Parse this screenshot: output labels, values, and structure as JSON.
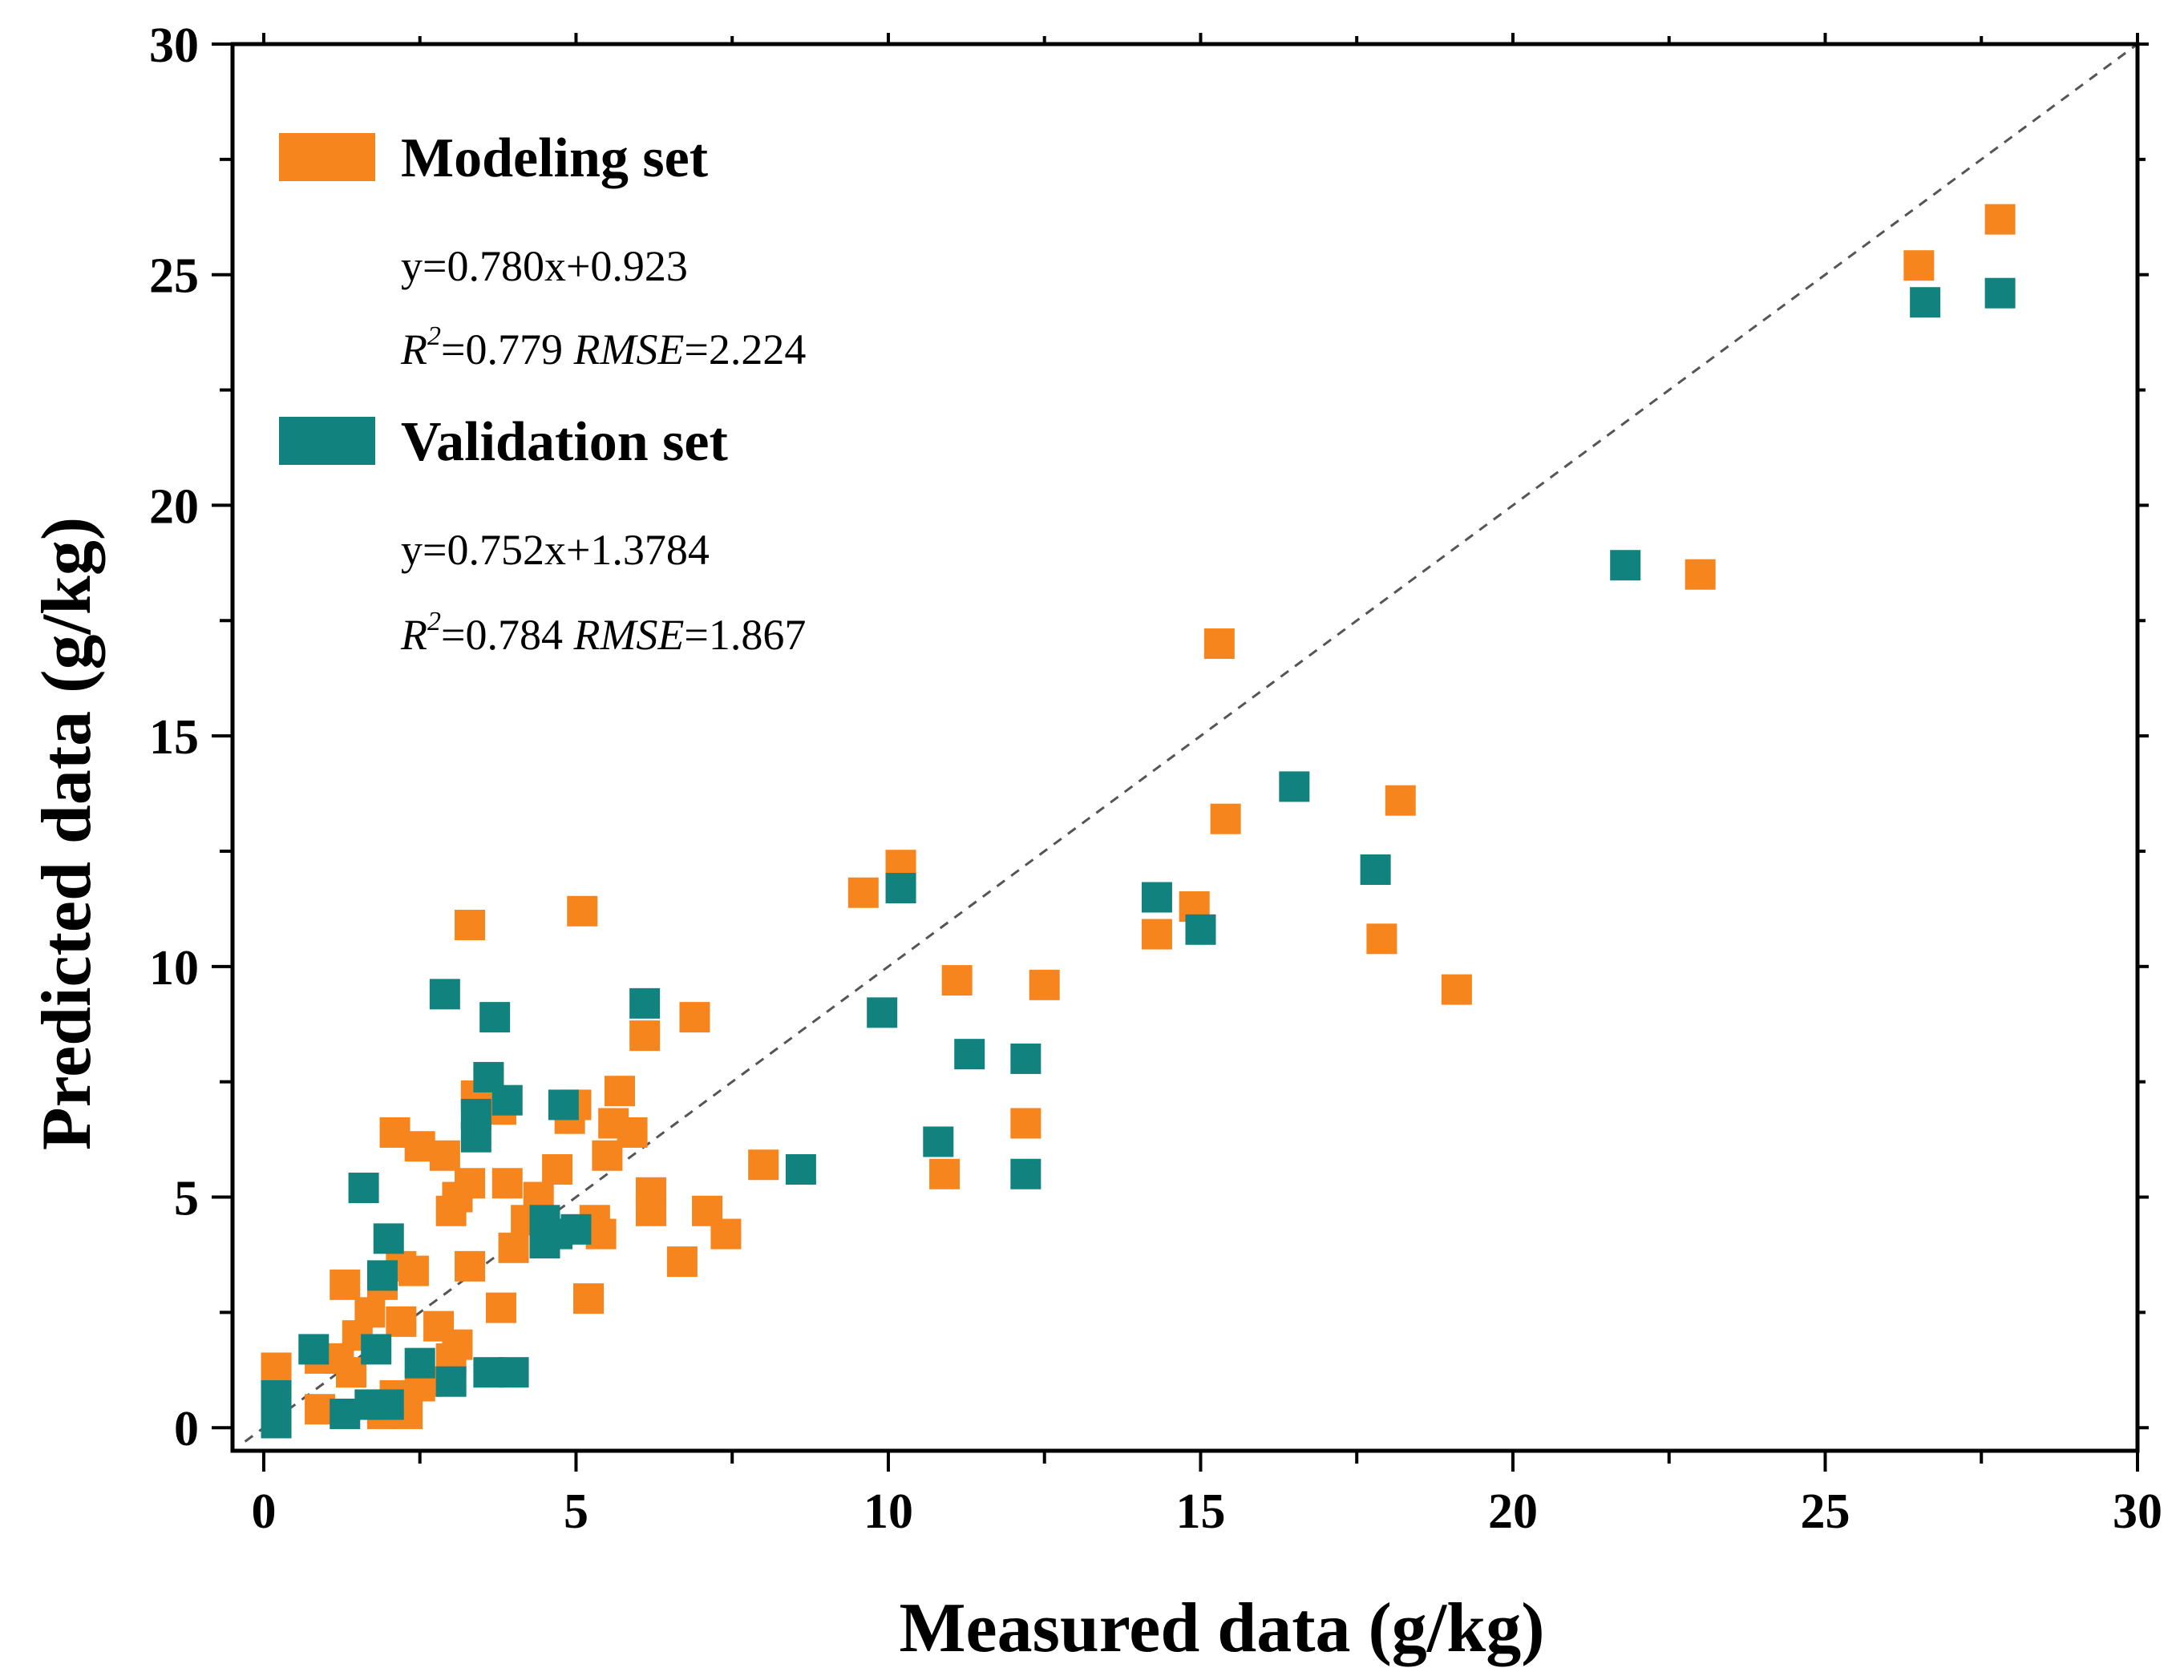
{
  "chart_data": {
    "type": "scatter",
    "xlabel": "Measured data (g/kg)",
    "ylabel": "Predicted data (g/kg)",
    "xlim": [
      -0.5,
      30
    ],
    "ylim": [
      -0.5,
      30
    ],
    "x_ticks": [
      0,
      5,
      10,
      15,
      20,
      25,
      30
    ],
    "y_ticks": [
      0,
      5,
      10,
      15,
      20,
      25,
      30
    ],
    "reference_line": "y = x (1:1, dashed)",
    "legend_position": "top-left",
    "series": [
      {
        "name": "Modeling set",
        "color": "#f7851e",
        "marker": "square",
        "equation": "y=0.780x+0.923",
        "r2_label": "R",
        "r2_sup": "2",
        "r2_value": "=0.779 ",
        "rmse_label": "RMSE",
        "rmse_value": "=2.224",
        "points": [
          [
            27.8,
            26.2
          ],
          [
            26.5,
            25.2
          ],
          [
            23.0,
            18.5
          ],
          [
            15.3,
            17.0
          ],
          [
            15.4,
            13.2
          ],
          [
            18.2,
            13.6
          ],
          [
            17.9,
            10.6
          ],
          [
            19.1,
            9.5
          ],
          [
            14.9,
            11.3
          ],
          [
            14.3,
            10.7
          ],
          [
            10.2,
            12.2
          ],
          [
            9.6,
            11.6
          ],
          [
            11.1,
            9.7
          ],
          [
            12.5,
            9.6
          ],
          [
            12.2,
            6.6
          ],
          [
            10.9,
            5.5
          ],
          [
            6.9,
            8.9
          ],
          [
            6.1,
            8.5
          ],
          [
            5.1,
            11.2
          ],
          [
            3.3,
            10.9
          ],
          [
            8.0,
            5.7
          ],
          [
            7.4,
            4.2
          ],
          [
            7.1,
            4.7
          ],
          [
            6.7,
            3.6
          ],
          [
            6.2,
            5.1
          ],
          [
            6.2,
            4.7
          ],
          [
            5.9,
            6.4
          ],
          [
            5.7,
            7.3
          ],
          [
            5.6,
            6.6
          ],
          [
            5.5,
            5.9
          ],
          [
            5.3,
            4.5
          ],
          [
            5.4,
            4.2
          ],
          [
            5.0,
            7.0
          ],
          [
            4.9,
            6.7
          ],
          [
            4.7,
            5.6
          ],
          [
            4.4,
            5.0
          ],
          [
            4.2,
            4.5
          ],
          [
            4.0,
            3.9
          ],
          [
            3.9,
            5.3
          ],
          [
            3.8,
            6.9
          ],
          [
            3.6,
            7.5
          ],
          [
            3.4,
            7.2
          ],
          [
            3.3,
            5.3
          ],
          [
            3.1,
            5.0
          ],
          [
            3.0,
            4.7
          ],
          [
            2.9,
            5.9
          ],
          [
            3.3,
            3.5
          ],
          [
            3.8,
            2.6
          ],
          [
            5.2,
            2.8
          ],
          [
            2.5,
            6.1
          ],
          [
            2.1,
            6.4
          ],
          [
            2.4,
            3.4
          ],
          [
            2.2,
            3.5
          ],
          [
            1.9,
            3.1
          ],
          [
            1.3,
            3.1
          ],
          [
            1.7,
            2.5
          ],
          [
            1.5,
            2.0
          ],
          [
            2.2,
            2.3
          ],
          [
            2.8,
            2.2
          ],
          [
            3.1,
            1.8
          ],
          [
            3.0,
            1.5
          ],
          [
            2.6,
            1.0
          ],
          [
            2.5,
            0.9
          ],
          [
            2.1,
            0.7
          ],
          [
            2.3,
            0.3
          ],
          [
            1.9,
            0.3
          ],
          [
            1.4,
            1.2
          ],
          [
            1.7,
            0.5
          ],
          [
            0.9,
            1.5
          ],
          [
            0.9,
            0.4
          ],
          [
            0.2,
            1.3
          ],
          [
            1.2,
            1.5
          ]
        ]
      },
      {
        "name": "Validation set",
        "color": "#12827e",
        "marker": "square",
        "equation": "y=0.752x+1.3784",
        "r2_label": "R",
        "r2_sup": "2",
        "r2_value": "=0.784 ",
        "rmse_label": "RMSE",
        "rmse_value": "=1.867",
        "points": [
          [
            27.8,
            24.6
          ],
          [
            26.6,
            24.4
          ],
          [
            21.8,
            18.7
          ],
          [
            16.5,
            13.9
          ],
          [
            17.8,
            12.1
          ],
          [
            14.3,
            11.5
          ],
          [
            15.0,
            10.8
          ],
          [
            10.2,
            11.7
          ],
          [
            9.9,
            9.0
          ],
          [
            11.3,
            8.1
          ],
          [
            12.2,
            8.0
          ],
          [
            10.8,
            6.2
          ],
          [
            12.2,
            5.5
          ],
          [
            8.6,
            5.6
          ],
          [
            6.1,
            9.2
          ],
          [
            2.9,
            9.4
          ],
          [
            3.7,
            8.9
          ],
          [
            3.6,
            7.6
          ],
          [
            3.9,
            7.1
          ],
          [
            3.4,
            6.8
          ],
          [
            3.4,
            6.3
          ],
          [
            4.8,
            7.0
          ],
          [
            4.5,
            4.5
          ],
          [
            4.7,
            4.2
          ],
          [
            5.0,
            4.3
          ],
          [
            4.5,
            4.0
          ],
          [
            1.6,
            5.2
          ],
          [
            2.0,
            4.1
          ],
          [
            1.9,
            3.3
          ],
          [
            2.5,
            1.4
          ],
          [
            1.8,
            1.7
          ],
          [
            0.8,
            1.7
          ],
          [
            3.0,
            1.0
          ],
          [
            3.6,
            1.2
          ],
          [
            4.0,
            1.2
          ],
          [
            2.0,
            0.5
          ],
          [
            1.7,
            0.5
          ],
          [
            1.3,
            0.3
          ],
          [
            0.2,
            0.7
          ],
          [
            0.2,
            0.1
          ]
        ]
      }
    ]
  }
}
